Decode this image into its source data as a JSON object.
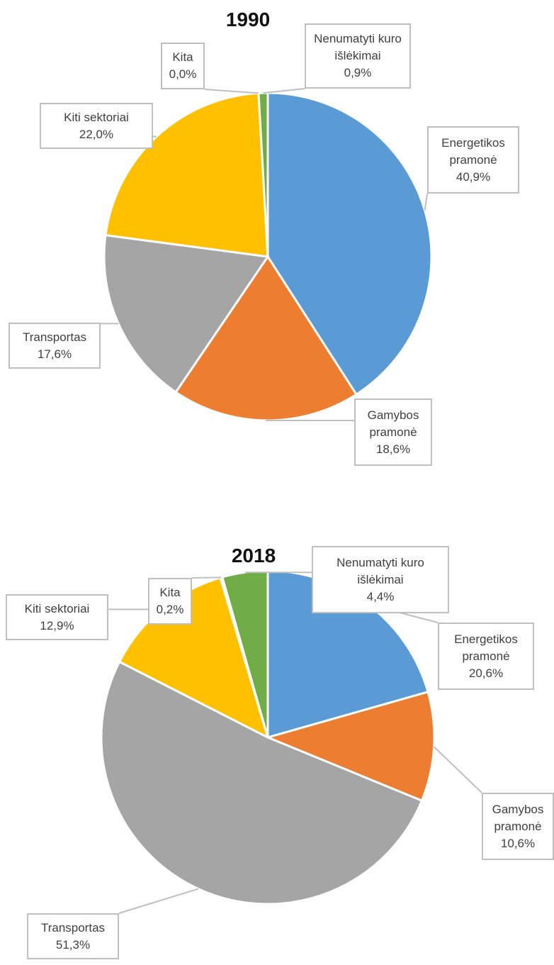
{
  "chart_data": [
    {
      "type": "pie",
      "title": "1990",
      "categories": [
        "Energetikos pramonė",
        "Gamybos pramonė",
        "Transportas",
        "Kiti sektoriai",
        "Kita",
        "Nenumatyti kuro išlėkimai"
      ],
      "values": [
        40.9,
        18.6,
        17.6,
        22.0,
        0.0,
        0.9
      ],
      "value_labels": [
        "40,9%",
        "18,6%",
        "17,6%",
        "22,0%",
        "0,0%",
        "0,9%"
      ],
      "colors": [
        "#5b9bd5",
        "#ed7d31",
        "#a5a5a5",
        "#ffc000",
        "#4472c4",
        "#70ad47"
      ]
    },
    {
      "type": "pie",
      "title": "2018",
      "categories": [
        "Energetikos pramonė",
        "Gamybos pramonė",
        "Transportas",
        "Kiti sektoriai",
        "Kita",
        "Nenumatyti kuro išlėkimai"
      ],
      "values": [
        20.6,
        10.6,
        51.3,
        12.9,
        0.2,
        4.4
      ],
      "value_labels": [
        "20,6%",
        "10,6%",
        "51,3%",
        "12,9%",
        "0,2%",
        "4,4%"
      ],
      "colors": [
        "#5b9bd5",
        "#ed7d31",
        "#a5a5a5",
        "#ffc000",
        "#4472c4",
        "#70ad47"
      ]
    }
  ]
}
